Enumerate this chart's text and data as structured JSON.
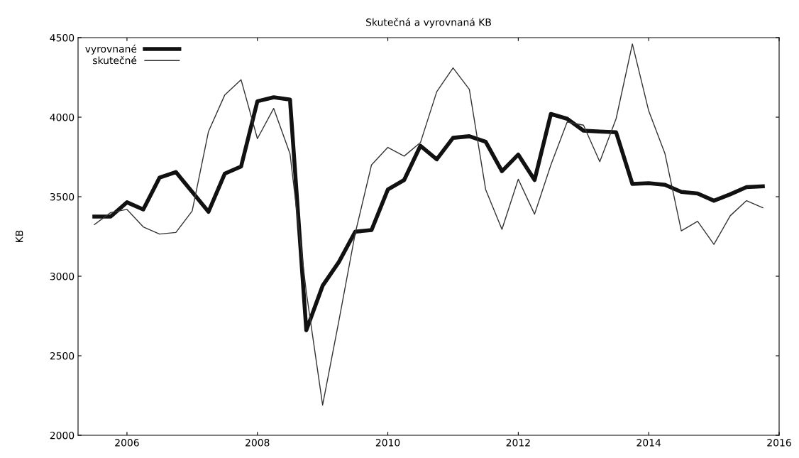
{
  "chart_data": {
    "type": "line",
    "title": "Skutečná a vyrovnaná KB",
    "ylabel": "KB",
    "x": [
      2005.5,
      2005.75,
      2006,
      2006.25,
      2006.5,
      2006.75,
      2007,
      2007.25,
      2007.5,
      2007.75,
      2008,
      2008.25,
      2008.5,
      2008.75,
      2009,
      2009.25,
      2009.5,
      2009.75,
      2010,
      2010.25,
      2010.5,
      2010.75,
      2011,
      2011.25,
      2011.5,
      2011.75,
      2012,
      2012.25,
      2012.5,
      2012.75,
      2013,
      2013.25,
      2013.5,
      2013.75,
      2014,
      2014.25,
      2014.5,
      2014.75,
      2015,
      2015.25,
      2015.5,
      2015.75
    ],
    "series": [
      {
        "name": "vyrovnané",
        "color": "#111111",
        "values": [
          3375,
          3375,
          3465,
          3420,
          3620,
          3655,
          3530,
          3405,
          3645,
          3690,
          4100,
          4125,
          4110,
          2660,
          2940,
          3090,
          3280,
          3290,
          3545,
          3605,
          3820,
          3735,
          3870,
          3880,
          3845,
          3660,
          3765,
          3605,
          4020,
          3990,
          3915,
          3910,
          3905,
          3580,
          3585,
          3575,
          3530,
          3520,
          3475,
          3515,
          3560,
          3565
        ]
      },
      {
        "name": "skutečné",
        "color": "#333333",
        "values": [
          3325,
          3400,
          3420,
          3310,
          3265,
          3275,
          3410,
          3910,
          4140,
          4235,
          3865,
          4055,
          3770,
          2900,
          2190,
          2720,
          3270,
          3700,
          3810,
          3755,
          3840,
          4160,
          4310,
          4175,
          3545,
          3295,
          3610,
          3390,
          3700,
          3970,
          3950,
          3720,
          3990,
          4460,
          4040,
          3770,
          3285,
          3345,
          3200,
          3380,
          3475,
          3430
        ]
      }
    ],
    "xlim": [
      2005.25,
      2016
    ],
    "xticks": [
      2006,
      2008,
      2010,
      2012,
      2014,
      2016
    ],
    "ylim": [
      2000,
      4500
    ],
    "yticks": [
      2000,
      2500,
      3000,
      3500,
      4000,
      4500
    ],
    "grid": false,
    "legend": "top left"
  }
}
